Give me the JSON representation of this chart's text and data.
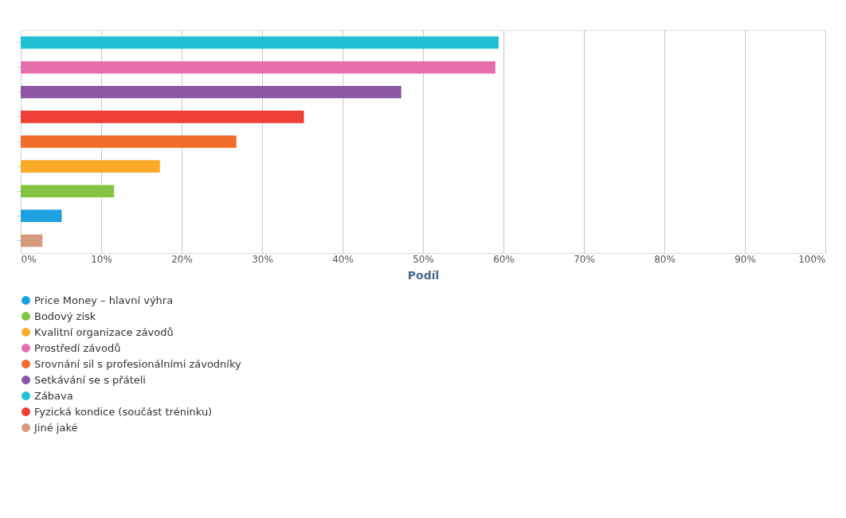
{
  "chart_data": {
    "type": "bar",
    "orientation": "horizontal",
    "xlabel": "Podíl",
    "categories": [
      null,
      null,
      null,
      null,
      null,
      null,
      null,
      null,
      null
    ],
    "series": [
      {
        "name": "Price Money – hlavní výhra",
        "color": "#1ca0e0",
        "values": [
          null,
          null,
          null,
          null,
          null,
          null,
          null,
          5.1,
          null
        ]
      },
      {
        "name": "Bodový zisk",
        "color": "#84c341",
        "values": [
          null,
          null,
          null,
          null,
          null,
          null,
          11.6,
          null,
          null
        ]
      },
      {
        "name": "Kvalitní organizace závodů",
        "color": "#fbaa27",
        "values": [
          null,
          null,
          null,
          null,
          null,
          17.3,
          null,
          null,
          null
        ]
      },
      {
        "name": "Prostředí závodů",
        "color": "#e56fab",
        "values": [
          null,
          59.0,
          null,
          null,
          null,
          null,
          null,
          null,
          null
        ]
      },
      {
        "name": "Srovnání sil s profesionálními závodníky",
        "color": "#f26c2a",
        "values": [
          null,
          null,
          null,
          null,
          26.8,
          null,
          null,
          null,
          null
        ]
      },
      {
        "name": "Setkávání se s přáteli",
        "color": "#8b55a4",
        "values": [
          null,
          null,
          47.3,
          null,
          null,
          null,
          null,
          null,
          null
        ]
      },
      {
        "name": "Zábava",
        "color": "#1fbfd4",
        "values": [
          59.4,
          null,
          null,
          null,
          null,
          null,
          null,
          null,
          null
        ]
      },
      {
        "name": "Fyzická kondice (součást tréninku)",
        "color": "#ee4035",
        "values": [
          null,
          null,
          null,
          35.2,
          null,
          null,
          null,
          null,
          null
        ]
      },
      {
        "name": "Jiné jaké",
        "color": "#d69a7c",
        "values": [
          null,
          null,
          null,
          null,
          null,
          null,
          null,
          null,
          2.7
        ]
      }
    ],
    "xlim": [
      0,
      100
    ],
    "xticks": [
      {
        "value": 0,
        "label": "0%"
      },
      {
        "value": 10,
        "label": "10%"
      },
      {
        "value": 20,
        "label": "20%"
      },
      {
        "value": 30,
        "label": "30%"
      },
      {
        "value": 40,
        "label": "40%"
      },
      {
        "value": 50,
        "label": "50%"
      },
      {
        "value": 60,
        "label": "60%"
      },
      {
        "value": 70,
        "label": "70%"
      },
      {
        "value": 80,
        "label": "80%"
      },
      {
        "value": 90,
        "label": "90%"
      },
      {
        "value": 100,
        "label": "100%"
      }
    ],
    "grid": "x",
    "legend": "bottom",
    "tick_labels": "x"
  }
}
